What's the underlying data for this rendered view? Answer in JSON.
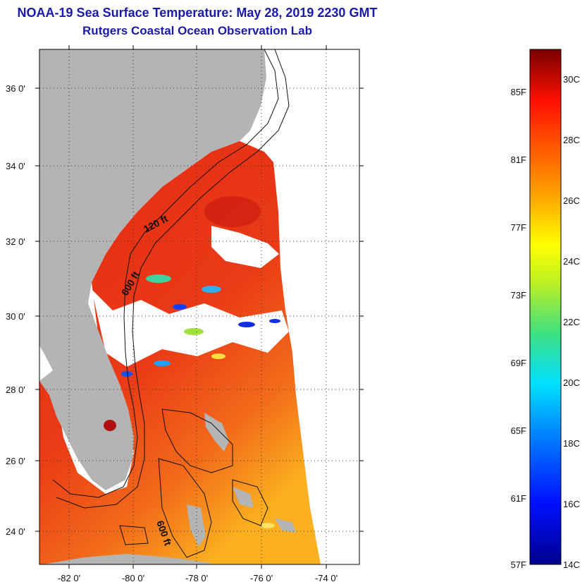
{
  "title": "NOAA-19 Sea Surface Temperature:  May 28, 2019 2230 GMT",
  "subtitle": "Rutgers Coastal Ocean Observation Lab",
  "lat_ticks": [
    "36 0'",
    "34 0'",
    "32 0'",
    "30 0'",
    "28 0'",
    "26 0'",
    "24 0'"
  ],
  "lon_ticks": [
    "-82 0'",
    "-80 0'",
    "-78 0'",
    "-76 0'",
    "-74 0'"
  ],
  "contour_labels": [
    "120 ft",
    "600 ft",
    "600 ft"
  ],
  "colorbar": {
    "fahrenheit": [
      "85F",
      "81F",
      "77F",
      "73F",
      "69F",
      "65F",
      "61F",
      "57F"
    ],
    "celsius": [
      "30C",
      "28C",
      "26C",
      "24C",
      "22C",
      "20C",
      "18C",
      "16C",
      "14C"
    ]
  },
  "colors": {
    "title": "#1a1aa8",
    "land": "#b4b4b4",
    "ocean_warm": "#e8301a",
    "ocean_cool": "#ffb000"
  }
}
